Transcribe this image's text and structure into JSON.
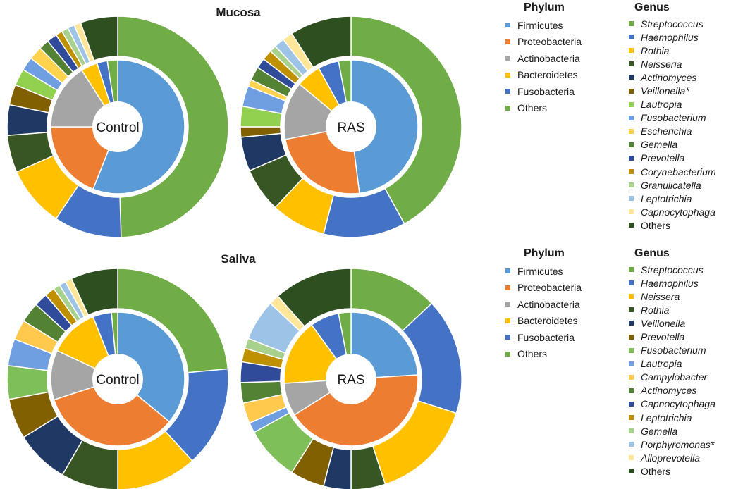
{
  "sections": [
    {
      "title": "Mucosa"
    },
    {
      "title": "Saliva"
    }
  ],
  "chart_data": [
    {
      "type": "donut",
      "section": "Mucosa",
      "center_label": "Control",
      "inner": [
        {
          "name": "Firmicutes",
          "value": 56.0
        },
        {
          "name": "Proteobacteria",
          "value": 19.0
        },
        {
          "name": "Actinobacteria",
          "value": 16.0
        },
        {
          "name": "Bacteroidetes",
          "value": 4.0
        },
        {
          "name": "Fusobacteria",
          "value": 2.5
        },
        {
          "name": "Others",
          "value": 2.5
        }
      ],
      "outer": [
        {
          "name": "Streptococcus",
          "value": 50.0
        },
        {
          "name": "Haemophilus",
          "value": 10.0
        },
        {
          "name": "Rothia",
          "value": 9.0
        },
        {
          "name": "Neisseria",
          "value": 5.5
        },
        {
          "name": "Actinomyces",
          "value": 4.5
        },
        {
          "name": "Veillonella",
          "value": 3.0
        },
        {
          "name": "Lautropia",
          "value": 2.5
        },
        {
          "name": "Fusobacterium",
          "value": 2.0
        },
        {
          "name": "Escherichia",
          "value": 2.0
        },
        {
          "name": "Gemella",
          "value": 1.5
        },
        {
          "name": "Prevotella",
          "value": 1.5
        },
        {
          "name": "Corynebacterium",
          "value": 1.0
        },
        {
          "name": "Granulicatella",
          "value": 1.0
        },
        {
          "name": "Leptotrichia",
          "value": 1.0
        },
        {
          "name": "Capnocytophaga",
          "value": 1.0
        },
        {
          "name": "Others",
          "value": 5.5
        }
      ]
    },
    {
      "type": "donut",
      "section": "Mucosa",
      "center_label": "RAS",
      "inner": [
        {
          "name": "Firmicutes",
          "value": 48.0
        },
        {
          "name": "Proteobacteria",
          "value": 24.0
        },
        {
          "name": "Actinobacteria",
          "value": 14.0
        },
        {
          "name": "Bacteroidetes",
          "value": 6.0
        },
        {
          "name": "Fusobacteria",
          "value": 5.0
        },
        {
          "name": "Others",
          "value": 3.0
        }
      ],
      "outer": [
        {
          "name": "Streptococcus",
          "value": 42.0
        },
        {
          "name": "Haemophilus",
          "value": 12.0
        },
        {
          "name": "Rothia",
          "value": 8.0
        },
        {
          "name": "Neisseria",
          "value": 6.5
        },
        {
          "name": "Actinomyces",
          "value": 5.0
        },
        {
          "name": "Veillonella",
          "value": 1.5
        },
        {
          "name": "Lautropia",
          "value": 3.0
        },
        {
          "name": "Fusobacterium",
          "value": 3.0
        },
        {
          "name": "Escherichia",
          "value": 1.0
        },
        {
          "name": "Gemella",
          "value": 2.0
        },
        {
          "name": "Prevotella",
          "value": 1.5
        },
        {
          "name": "Corynebacterium",
          "value": 1.5
        },
        {
          "name": "Granulicatella",
          "value": 1.0
        },
        {
          "name": "Leptotrichia",
          "value": 1.5
        },
        {
          "name": "Capnocytophaga",
          "value": 1.5
        },
        {
          "name": "Others",
          "value": 9.0
        }
      ]
    },
    {
      "type": "donut",
      "section": "Saliva",
      "center_label": "Control",
      "inner": [
        {
          "name": "Firmicutes",
          "value": 36.0
        },
        {
          "name": "Proteobacteria",
          "value": 34.0
        },
        {
          "name": "Actinobacteria",
          "value": 12.0
        },
        {
          "name": "Bacteroidetes",
          "value": 12.0
        },
        {
          "name": "Fusobacteria",
          "value": 4.5
        },
        {
          "name": "Others",
          "value": 1.5
        }
      ],
      "outer": [
        {
          "name": "Streptococcus",
          "value": 24.0
        },
        {
          "name": "Haemophilus",
          "value": 15.0
        },
        {
          "name": "Neissera",
          "value": 12.0
        },
        {
          "name": "Rothia",
          "value": 8.5
        },
        {
          "name": "Veillonella",
          "value": 8.0
        },
        {
          "name": "Prevotella",
          "value": 6.0
        },
        {
          "name": "Fusobacterium",
          "value": 5.0
        },
        {
          "name": "Lautropia",
          "value": 4.0
        },
        {
          "name": "Campylobacter",
          "value": 3.0
        },
        {
          "name": "Actinomyces",
          "value": 3.0
        },
        {
          "name": "Capnocytophaga",
          "value": 2.0
        },
        {
          "name": "Leptotrichia",
          "value": 1.5
        },
        {
          "name": "Gemella",
          "value": 1.0
        },
        {
          "name": "Porphyromonas",
          "value": 1.0
        },
        {
          "name": "Alloprevotella",
          "value": 1.0
        },
        {
          "name": "Others",
          "value": 7.0
        }
      ]
    },
    {
      "type": "donut",
      "section": "Saliva",
      "center_label": "RAS",
      "inner": [
        {
          "name": "Firmicutes",
          "value": 24.0
        },
        {
          "name": "Proteobacteria",
          "value": 42.0
        },
        {
          "name": "Actinobacteria",
          "value": 8.0
        },
        {
          "name": "Bacteroidetes",
          "value": 16.0
        },
        {
          "name": "Fusobacteria",
          "value": 7.0
        },
        {
          "name": "Others",
          "value": 3.0
        }
      ],
      "outer": [
        {
          "name": "Streptococcus",
          "value": 13.0
        },
        {
          "name": "Haemophilus",
          "value": 17.0
        },
        {
          "name": "Neissera",
          "value": 15.0
        },
        {
          "name": "Rothia",
          "value": 5.0
        },
        {
          "name": "Veillonella",
          "value": 4.0
        },
        {
          "name": "Prevotella",
          "value": 5.0
        },
        {
          "name": "Fusobacterium",
          "value": 8.0
        },
        {
          "name": "Lautropia",
          "value": 1.5
        },
        {
          "name": "Campylobacter",
          "value": 3.0
        },
        {
          "name": "Actinomyces",
          "value": 3.0
        },
        {
          "name": "Capnocytophaga",
          "value": 3.0
        },
        {
          "name": "Leptotrichia",
          "value": 2.0
        },
        {
          "name": "Gemella",
          "value": 1.5
        },
        {
          "name": "Porphyromonas",
          "value": 6.0
        },
        {
          "name": "Alloprevotella",
          "value": 1.5
        },
        {
          "name": "Others",
          "value": 11.5
        }
      ]
    }
  ],
  "legends": {
    "mucosa": {
      "phylum_title": "Phylum",
      "genus_title": "Genus",
      "phylum": [
        {
          "label": "Firmicutes",
          "color": "#5b9bd5"
        },
        {
          "label": "Proteobacteria",
          "color": "#ed7d31"
        },
        {
          "label": "Actinobacteria",
          "color": "#a5a5a5"
        },
        {
          "label": "Bacteroidetes",
          "color": "#ffc000"
        },
        {
          "label": "Fusobacteria",
          "color": "#4472c4"
        },
        {
          "label": "Others",
          "color": "#70ad47"
        }
      ],
      "genus": [
        {
          "label": "Streptococcus",
          "color": "#70ad47"
        },
        {
          "label": "Haemophilus",
          "color": "#4472c4"
        },
        {
          "label": "Rothia",
          "color": "#ffc000"
        },
        {
          "label": "Neisseria",
          "color": "#375623"
        },
        {
          "label": "Actinomyces",
          "color": "#203864"
        },
        {
          "label": "Veillonella*",
          "color": "#806000"
        },
        {
          "label": "Lautropia",
          "color": "#92d050"
        },
        {
          "label": "Fusobacterium",
          "color": "#6f9fe0"
        },
        {
          "label": "Escherichia",
          "color": "#ffd34d"
        },
        {
          "label": "Gemella",
          "color": "#548235"
        },
        {
          "label": "Prevotella",
          "color": "#2f4b9a"
        },
        {
          "label": "Corynebacterium",
          "color": "#bf9000"
        },
        {
          "label": "Granulicatella",
          "color": "#a9d18e"
        },
        {
          "label": "Leptotrichia",
          "color": "#9dc3e6"
        },
        {
          "label": "Capnocytophaga",
          "color": "#ffe699"
        },
        {
          "label": "Others",
          "color": "#2e4f1f",
          "plain": true
        }
      ]
    },
    "saliva": {
      "phylum_title": "Phylum",
      "genus_title": "Genus",
      "phylum": [
        {
          "label": "Firmicutes",
          "color": "#5b9bd5"
        },
        {
          "label": "Proteobacteria",
          "color": "#ed7d31"
        },
        {
          "label": "Actinobacteria",
          "color": "#a5a5a5"
        },
        {
          "label": "Bacteroidetes",
          "color": "#ffc000"
        },
        {
          "label": "Fusobacteria",
          "color": "#4472c4"
        },
        {
          "label": "Others",
          "color": "#70ad47"
        }
      ],
      "genus": [
        {
          "label": "Streptococcus",
          "color": "#70ad47"
        },
        {
          "label": "Haemophilus",
          "color": "#4472c4"
        },
        {
          "label": "Neissera",
          "color": "#ffc000"
        },
        {
          "label": "Rothia",
          "color": "#375623"
        },
        {
          "label": "Veillonella",
          "color": "#203864"
        },
        {
          "label": "Prevotella",
          "color": "#806000"
        },
        {
          "label": "Fusobacterium",
          "color": "#7fbf5a"
        },
        {
          "label": "Lautropia",
          "color": "#6f9fe0"
        },
        {
          "label": "Campylobacter",
          "color": "#ffc94d"
        },
        {
          "label": "Actinomyces",
          "color": "#548235"
        },
        {
          "label": "Capnocytophaga",
          "color": "#2f4b9a"
        },
        {
          "label": "Leptotrichia",
          "color": "#bf9000"
        },
        {
          "label": "Gemella",
          "color": "#a9d18e"
        },
        {
          "label": "Porphyromonas*",
          "color": "#9dc3e6"
        },
        {
          "label": "Alloprevotella",
          "color": "#ffe699"
        },
        {
          "label": "Others",
          "color": "#2e4f1f",
          "plain": true
        }
      ]
    }
  }
}
